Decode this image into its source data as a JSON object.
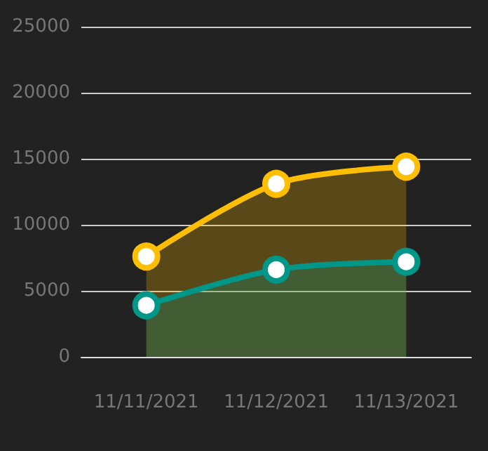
{
  "chart_data": {
    "type": "area",
    "categories": [
      "11/11/2021",
      "11/12/2021",
      "11/13/2021"
    ],
    "series": [
      {
        "color": "#ffbf00",
        "values": [
          7600,
          13100,
          14400
        ]
      },
      {
        "color": "#009688",
        "values": [
          3900,
          6600,
          7200
        ]
      }
    ],
    "ylim": [
      0,
      25000
    ],
    "yticks": [
      0,
      5000,
      10000,
      15000,
      20000,
      25000
    ],
    "grid": "y",
    "marker": "circle",
    "line_style": "solid"
  }
}
